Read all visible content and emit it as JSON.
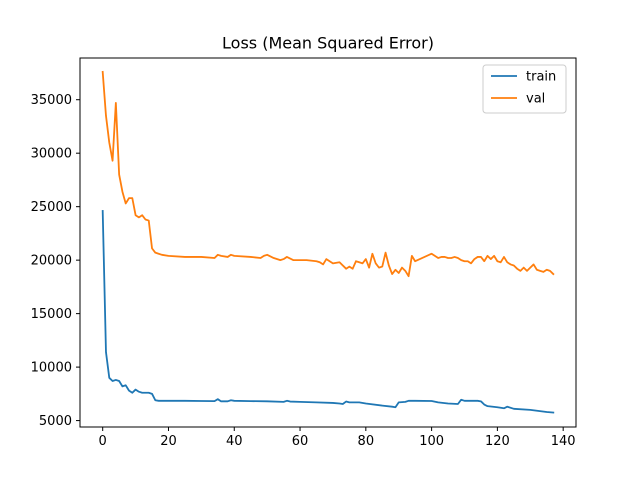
{
  "chart_data": {
    "type": "line",
    "title": "Loss (Mean Squared Error)",
    "xlabel": "",
    "ylabel": "",
    "xlim": [
      -6.9,
      143.9
    ],
    "ylim": [
      4400,
      38900
    ],
    "xticks": [
      0,
      20,
      40,
      60,
      80,
      100,
      120,
      140
    ],
    "yticks": [
      5000,
      10000,
      15000,
      20000,
      25000,
      30000,
      35000
    ],
    "grid": false,
    "legend_position": "top-right",
    "series": [
      {
        "name": "train",
        "color": "#1f77b4",
        "x": [
          0,
          1,
          2,
          3,
          4,
          5,
          6,
          7,
          8,
          9,
          10,
          11,
          12,
          13,
          14,
          15,
          16,
          17,
          18,
          20,
          25,
          30,
          34,
          35,
          36,
          38,
          39,
          40,
          45,
          50,
          55,
          56,
          57,
          60,
          65,
          70,
          72,
          73,
          74,
          75,
          78,
          80,
          85,
          88,
          89,
          90,
          92,
          93,
          95,
          100,
          102,
          105,
          108,
          109,
          110,
          113,
          114,
          115,
          116,
          117,
          120,
          121,
          122,
          123,
          125,
          130,
          135,
          137
        ],
        "values": [
          24600,
          11400,
          9000,
          8700,
          8800,
          8700,
          8200,
          8300,
          7800,
          7600,
          7900,
          7700,
          7600,
          7600,
          7600,
          7500,
          6900,
          6850,
          6850,
          6850,
          6850,
          6830,
          6820,
          7000,
          6800,
          6800,
          6900,
          6850,
          6820,
          6800,
          6750,
          6850,
          6780,
          6750,
          6700,
          6650,
          6600,
          6550,
          6780,
          6700,
          6700,
          6600,
          6400,
          6300,
          6250,
          6700,
          6750,
          6850,
          6850,
          6830,
          6700,
          6600,
          6550,
          6950,
          6850,
          6850,
          6850,
          6800,
          6500,
          6350,
          6250,
          6200,
          6150,
          6300,
          6100,
          6000,
          5800,
          5750
        ]
      },
      {
        "name": "val",
        "color": "#ff7f0e",
        "x": [
          0,
          1,
          2,
          3,
          4,
          5,
          6,
          7,
          8,
          9,
          10,
          11,
          12,
          13,
          14,
          15,
          16,
          17,
          18,
          20,
          25,
          30,
          34,
          35,
          36,
          38,
          39,
          40,
          45,
          48,
          49,
          50,
          52,
          54,
          55,
          56,
          58,
          60,
          62,
          65,
          66,
          67,
          68,
          70,
          72,
          74,
          75,
          76,
          77,
          78,
          79,
          80,
          81,
          82,
          83,
          84,
          85,
          86,
          87,
          88,
          89,
          90,
          91,
          92,
          93,
          94,
          95,
          100,
          101,
          102,
          103,
          104,
          105,
          106,
          107,
          108,
          109,
          110,
          111,
          112,
          113,
          114,
          115,
          116,
          117,
          118,
          119,
          120,
          121,
          122,
          123,
          124,
          125,
          126,
          127,
          128,
          129,
          130,
          131,
          132,
          133,
          134,
          135,
          136,
          137
        ],
        "values": [
          37600,
          33500,
          31000,
          29300,
          34700,
          28000,
          26400,
          25300,
          25800,
          25800,
          24200,
          24000,
          24200,
          23800,
          23700,
          21100,
          20700,
          20600,
          20500,
          20400,
          20300,
          20300,
          20200,
          20500,
          20400,
          20300,
          20500,
          20400,
          20300,
          20200,
          20400,
          20500,
          20200,
          20000,
          20100,
          20300,
          20000,
          20000,
          20000,
          19900,
          19800,
          19600,
          20100,
          19700,
          19800,
          19200,
          19400,
          19200,
          19900,
          19800,
          19700,
          20100,
          19300,
          20600,
          19700,
          19300,
          19400,
          20700,
          19500,
          18700,
          19100,
          18800,
          19300,
          19000,
          18500,
          20400,
          19900,
          20600,
          20400,
          20200,
          20300,
          20300,
          20200,
          20200,
          20300,
          20200,
          20000,
          19900,
          19900,
          19700,
          20100,
          20300,
          20300,
          19900,
          20400,
          20100,
          20400,
          19900,
          19800,
          20300,
          19800,
          19600,
          19500,
          19200,
          19000,
          19300,
          19000,
          19300,
          19600,
          19100,
          19000,
          18900,
          19100,
          19000,
          18700
        ]
      }
    ]
  }
}
